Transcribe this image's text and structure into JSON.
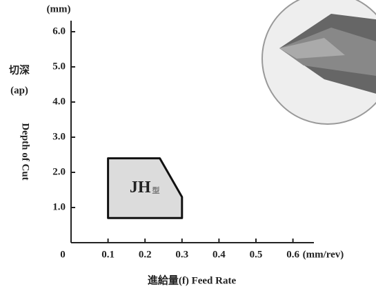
{
  "chart_data": {
    "type": "region",
    "y_unit": "(mm)",
    "y_label_cn": "切深",
    "y_label_abbr": "(ap)",
    "y_label_en": "Depth of Cut",
    "x_label": "進給量(f) Feed Rate",
    "x_unit": "(mm/rev)",
    "xlim": [
      0,
      0.65
    ],
    "ylim": [
      0,
      6.4
    ],
    "xticks": [
      0,
      0.1,
      0.2,
      0.3,
      0.4,
      0.5,
      0.6
    ],
    "yticks": [
      {
        "value": 1,
        "label": "1.0"
      },
      {
        "value": 2,
        "label": "2.0"
      },
      {
        "value": 3,
        "label": "3.0"
      },
      {
        "value": 4,
        "label": "4.0"
      },
      {
        "value": 5,
        "label": "5.0"
      },
      {
        "value": 6,
        "label": "6.0"
      }
    ],
    "series": [
      {
        "name": "JH",
        "name_suffix": "型",
        "color": "#dcdcdc",
        "x": [
          0.1,
          0.24,
          0.3,
          0.3,
          0.1
        ],
        "y": [
          2.4,
          2.4,
          1.3,
          0.7,
          0.7
        ]
      }
    ]
  }
}
